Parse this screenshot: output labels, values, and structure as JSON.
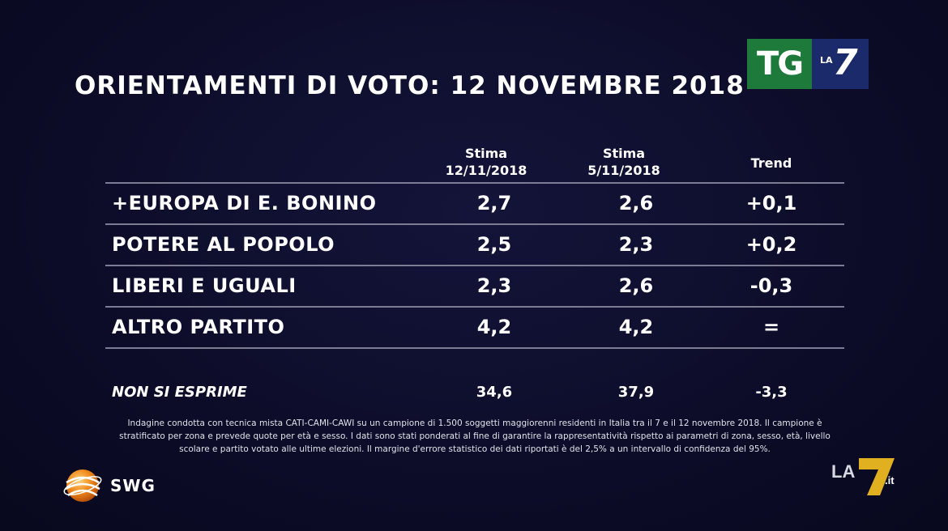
{
  "title": "ORIENTAMENTI DI VOTO: 12 NOVEMBRE 2018",
  "brand": {
    "tg_text": "TG",
    "la_text": "LA",
    "seven_text": "7",
    "tg_color": "#1e7a3a",
    "la7_color": "#1a2a6a",
    "swg_text": "SWG",
    "swg_color": "#f08a1c",
    "watermark_text": "LA7.it",
    "watermark_color": "#e0b020"
  },
  "table": {
    "headers": {
      "col1_line1": "Stima",
      "col1_line2": "12/11/2018",
      "col2_line1": "Stima",
      "col2_line2": "5/11/2018",
      "col3": "Trend"
    },
    "rows": [
      {
        "name": "+EUROPA DI E. BONINO",
        "v1": "2,7",
        "v2": "2,6",
        "trend": "+0,1"
      },
      {
        "name": "POTERE AL POPOLO",
        "v1": "2,5",
        "v2": "2,3",
        "trend": "+0,2"
      },
      {
        "name": "LIBERI E UGUALI",
        "v1": "2,3",
        "v2": "2,6",
        "trend": "-0,3"
      },
      {
        "name": "ALTRO PARTITO",
        "v1": "4,2",
        "v2": "4,2",
        "trend": "="
      }
    ],
    "non_si_esprime": {
      "name": "NON SI ESPRIME",
      "v1": "34,6",
      "v2": "37,9",
      "trend": "-3,3"
    }
  },
  "footnote": {
    "line1": "Indagine condotta con tecnica mista CATI-CAMI-CAWI su un campione di 1.500 soggetti maggiorenni residenti in Italia tra il 7 e il 12 novembre 2018. Il campione è",
    "line2": "stratificato per zona e prevede quote per età e sesso. I dati sono stati ponderati al fine di garantire la rappresentatività rispetto ai parametri di zona, sesso, età, livello",
    "line3": "scolare e partito votato alle ultime elezioni. Il margine d'errore statistico dei dati riportati è del 2,5% a un intervallo di confidenza del 95%."
  }
}
